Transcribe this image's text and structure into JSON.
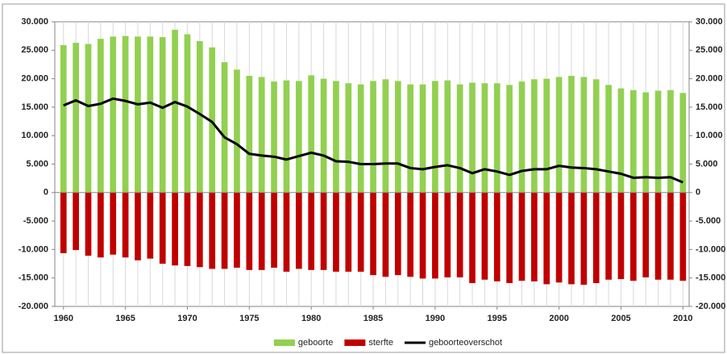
{
  "chart_data": {
    "type": "bar",
    "x": [
      1960,
      1961,
      1962,
      1963,
      1964,
      1965,
      1966,
      1967,
      1968,
      1969,
      1970,
      1971,
      1972,
      1973,
      1974,
      1975,
      1976,
      1977,
      1978,
      1979,
      1980,
      1981,
      1982,
      1983,
      1984,
      1985,
      1986,
      1987,
      1988,
      1989,
      1990,
      1991,
      1992,
      1993,
      1994,
      1995,
      1996,
      1997,
      1998,
      1999,
      2000,
      2001,
      2002,
      2003,
      2004,
      2005,
      2006,
      2007,
      2008,
      2009,
      2010
    ],
    "xlim": [
      1959.3,
      2010.5
    ],
    "xticks": [
      1960,
      1965,
      1970,
      1975,
      1980,
      1985,
      1990,
      1995,
      2000,
      2005,
      2010
    ],
    "xgrid": true,
    "ylim": [
      -20000,
      30000
    ],
    "yticks": [
      {
        "value": -20000,
        "label": "-20.000"
      },
      {
        "value": -15000,
        "label": "-15.000"
      },
      {
        "value": -10000,
        "label": "-10.000"
      },
      {
        "value": -5000,
        "label": "-5.000"
      },
      0,
      {
        "value": 5000,
        "label": "5.000"
      },
      {
        "value": 10000,
        "label": "10.000"
      },
      {
        "value": 15000,
        "label": "15.000"
      },
      {
        "value": 20000,
        "label": "20.000"
      },
      {
        "value": 25000,
        "label": "25.000"
      },
      {
        "value": 30000,
        "label": "30.000"
      }
    ],
    "y2lim": [
      -20000,
      30000
    ],
    "y2ticks": [
      {
        "value": -20000,
        "label": "-20.000"
      },
      {
        "value": -15000,
        "label": "-15.000"
      },
      {
        "value": -10000,
        "label": "-10.000"
      },
      {
        "value": -5000,
        "label": "-5.000"
      },
      0,
      {
        "value": 5000,
        "label": "5.000"
      },
      {
        "value": 10000,
        "label": "10.000"
      },
      {
        "value": 15000,
        "label": "15.000"
      },
      {
        "value": 20000,
        "label": "20.000"
      },
      {
        "value": 25000,
        "label": "25.000"
      },
      {
        "value": 30000,
        "label": "30.000"
      }
    ],
    "legend": "bottom",
    "series": [
      {
        "name": "geboorte",
        "type": "bar",
        "color": "#92d050",
        "values": [
          25900,
          26300,
          26100,
          27000,
          27400,
          27500,
          27400,
          27400,
          27300,
          28600,
          27800,
          26600,
          25500,
          22900,
          21600,
          20500,
          20300,
          19500,
          19700,
          19600,
          20600,
          20000,
          19600,
          19200,
          19000,
          19600,
          19900,
          19600,
          19000,
          19000,
          19600,
          19700,
          19000,
          19300,
          19200,
          19200,
          18900,
          19500,
          19900,
          20000,
          20300,
          20500,
          20300,
          19900,
          18900,
          18300,
          18000,
          17600,
          17900,
          18000,
          17500
        ]
      },
      {
        "name": "sterfte",
        "type": "bar",
        "color": "#c00000",
        "values": [
          -10650,
          -10100,
          -11100,
          -11400,
          -10900,
          -11400,
          -11900,
          -11600,
          -12500,
          -12800,
          -12900,
          -13100,
          -13400,
          -13400,
          -13200,
          -13600,
          -13600,
          -13200,
          -13900,
          -13400,
          -13600,
          -13600,
          -13900,
          -13900,
          -13900,
          -14500,
          -14800,
          -14500,
          -14800,
          -15100,
          -15100,
          -14900,
          -14900,
          -15900,
          -15300,
          -15600,
          -15900,
          -15500,
          -15600,
          -16100,
          -15800,
          -16100,
          -16200,
          -15900,
          -15300,
          -15200,
          -15500,
          -14900,
          -15300,
          -15300,
          -15500
        ]
      },
      {
        "name": "geboorteoverschot",
        "type": "line",
        "color": "#000000",
        "values": [
          15300,
          16200,
          15200,
          15600,
          16500,
          16100,
          15500,
          15800,
          14900,
          15900,
          15100,
          13800,
          12400,
          9700,
          8500,
          6800,
          6500,
          6300,
          5800,
          6400,
          7000,
          6500,
          5500,
          5400,
          5000,
          5000,
          5100,
          5100,
          4300,
          4100,
          4500,
          4800,
          4300,
          3400,
          4100,
          3700,
          3100,
          3800,
          4100,
          4100,
          4700,
          4400,
          4300,
          4100,
          3700,
          3300,
          2600,
          2700,
          2600,
          2700,
          1800
        ]
      }
    ]
  }
}
